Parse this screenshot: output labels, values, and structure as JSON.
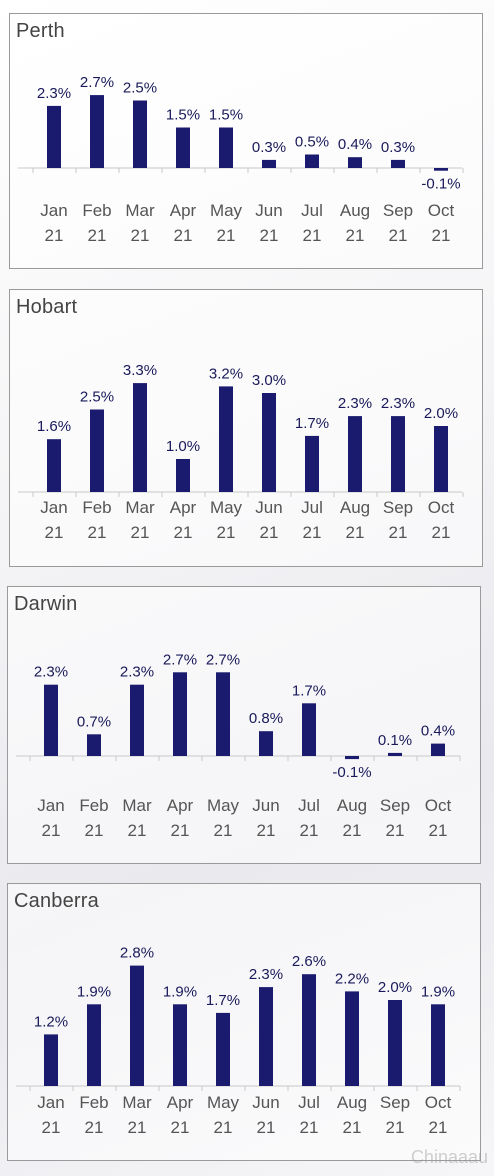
{
  "chart_data": [
    {
      "type": "bar",
      "title": "Perth",
      "categories": [
        "Jan 21",
        "Feb 21",
        "Mar 21",
        "Apr 21",
        "May 21",
        "Jun 21",
        "Jul 21",
        "Aug 21",
        "Sep 21",
        "Oct 21"
      ],
      "values": [
        2.3,
        2.7,
        2.5,
        1.5,
        1.5,
        0.3,
        0.5,
        0.4,
        0.3,
        -0.1
      ],
      "labels": [
        "2.3%",
        "2.7%",
        "2.5%",
        "1.5%",
        "1.5%",
        "0.3%",
        "0.5%",
        "0.4%",
        "0.3%",
        "-0.1%"
      ],
      "xlabel": "",
      "ylabel": "",
      "grid": false
    },
    {
      "type": "bar",
      "title": "Hobart",
      "categories": [
        "Jan 21",
        "Feb 21",
        "Mar 21",
        "Apr 21",
        "May 21",
        "Jun 21",
        "Jul 21",
        "Aug 21",
        "Sep 21",
        "Oct 21"
      ],
      "values": [
        1.6,
        2.5,
        3.3,
        1.0,
        3.2,
        3.0,
        1.7,
        2.3,
        2.3,
        2.0
      ],
      "labels": [
        "1.6%",
        "2.5%",
        "3.3%",
        "1.0%",
        "3.2%",
        "3.0%",
        "1.7%",
        "2.3%",
        "2.3%",
        "2.0%"
      ],
      "xlabel": "",
      "ylabel": "",
      "grid": false
    },
    {
      "type": "bar",
      "title": "Darwin",
      "categories": [
        "Jan 21",
        "Feb 21",
        "Mar 21",
        "Apr 21",
        "May 21",
        "Jun 21",
        "Jul 21",
        "Aug 21",
        "Sep 21",
        "Oct 21"
      ],
      "values": [
        2.3,
        0.7,
        2.3,
        2.7,
        2.7,
        0.8,
        1.7,
        -0.1,
        0.1,
        0.4
      ],
      "labels": [
        "2.3%",
        "0.7%",
        "2.3%",
        "2.7%",
        "2.7%",
        "0.8%",
        "1.7%",
        "-0.1%",
        "0.1%",
        "0.4%"
      ],
      "xlabel": "",
      "ylabel": "",
      "grid": false
    },
    {
      "type": "bar",
      "title": "Canberra",
      "categories": [
        "Jan 21",
        "Feb 21",
        "Mar 21",
        "Apr 21",
        "May 21",
        "Jun 21",
        "Jul 21",
        "Aug 21",
        "Sep 21",
        "Oct 21"
      ],
      "values": [
        1.2,
        1.9,
        2.8,
        1.9,
        1.7,
        2.3,
        2.6,
        2.2,
        2.0,
        1.9
      ],
      "labels": [
        "1.2%",
        "1.9%",
        "2.8%",
        "1.9%",
        "1.7%",
        "2.3%",
        "2.6%",
        "2.2%",
        "2.0%",
        "1.9%"
      ],
      "xlabel": "",
      "ylabel": "",
      "grid": false
    }
  ],
  "colors": {
    "bar": "#1a1a6e",
    "label": "#1a1a5a",
    "axis": "#c8c8c8",
    "tick_text": "#555555"
  },
  "watermark": "Chinaaau"
}
